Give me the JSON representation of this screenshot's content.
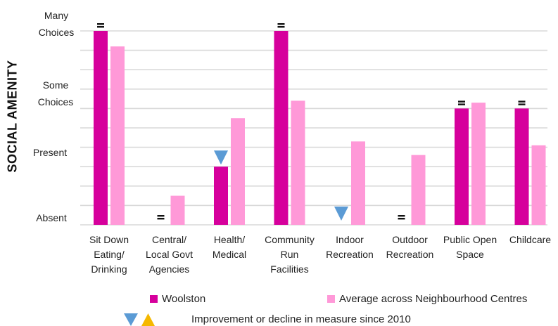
{
  "chart_data": {
    "type": "bar",
    "ylabel": "SOCIAL AMENITY",
    "ylim": [
      0,
      10
    ],
    "y_tick_labels": [
      {
        "value": 0,
        "label": "Absent"
      },
      {
        "value": 3.33,
        "label": "Present"
      },
      {
        "value": 6.67,
        "label": "Some Choices"
      },
      {
        "value": 10,
        "label": "Many Choices"
      }
    ],
    "categories": [
      "Sit Down Eating/ Drinking",
      "Central/ Local Govt Agencies",
      "Health/ Medical",
      "Community Run Facilities",
      "Indoor Recreation",
      "Outdoor Recreation",
      "Public Open Space",
      "Childcare"
    ],
    "category_lines": [
      [
        "Sit Down",
        "Eating/",
        "Drinking"
      ],
      [
        "Central/",
        "Local Govt",
        "Agencies"
      ],
      [
        "Health/",
        "Medical"
      ],
      [
        "Community",
        "Run",
        "Facilities"
      ],
      [
        "Indoor",
        "Recreation"
      ],
      [
        "Outdoor",
        "Recreation"
      ],
      [
        "Public Open",
        "Space"
      ],
      [
        "Childcare"
      ]
    ],
    "series": [
      {
        "name": "Woolston",
        "color": "#d6009c",
        "values": [
          10,
          0,
          3.0,
          10,
          0,
          0,
          6.0,
          6.0
        ]
      },
      {
        "name": "Average across Neighbourhood Centres",
        "color": "#ff99d8",
        "values": [
          9.2,
          1.5,
          5.5,
          6.4,
          4.3,
          3.6,
          6.3,
          4.1
        ]
      }
    ],
    "markers": [
      {
        "category": 0,
        "symbol": "=",
        "type": "no-change"
      },
      {
        "category": 1,
        "symbol": "=",
        "type": "no-change"
      },
      {
        "category": 2,
        "symbol": "▼",
        "type": "decline"
      },
      {
        "category": 3,
        "symbol": "=",
        "type": "no-change"
      },
      {
        "category": 4,
        "symbol": "▼",
        "type": "decline"
      },
      {
        "category": 5,
        "symbol": "=",
        "type": "no-change"
      },
      {
        "category": 6,
        "symbol": "=",
        "type": "no-change"
      },
      {
        "category": 7,
        "symbol": "=",
        "type": "no-change"
      }
    ],
    "grid": true,
    "legend_position": "bottom",
    "marker_colors": {
      "decline": "#5b9bd5",
      "improvement": "#f5b800"
    }
  },
  "y_labels": {
    "many": [
      "Many",
      "Choices"
    ],
    "some": [
      "Some",
      "Choices"
    ],
    "present": "Present",
    "absent": "Absent"
  },
  "legend": {
    "woolston": "Woolston",
    "average": "Average across Neighbourhood Centres",
    "note": "Improvement or decline in measure since 2010"
  }
}
